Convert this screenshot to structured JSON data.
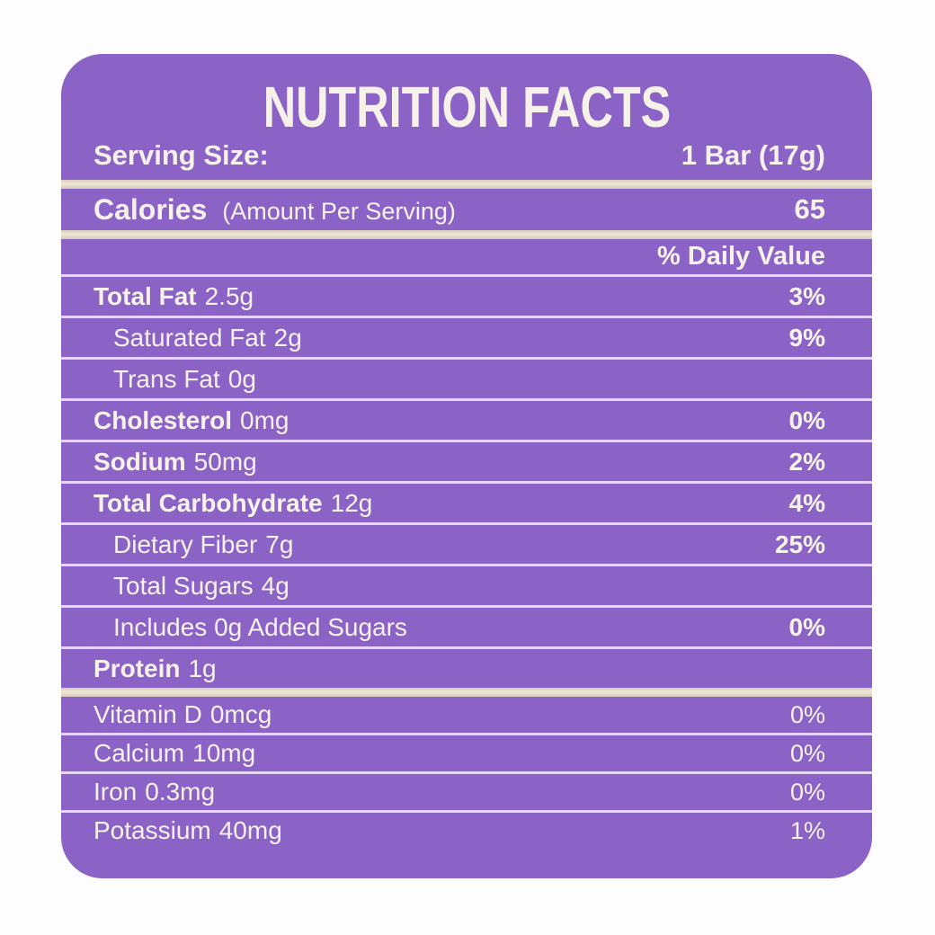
{
  "panel": {
    "title": "NUTRITION FACTS",
    "serving": {
      "label": "Serving Size:",
      "value": "1 Bar (17g)"
    },
    "calories": {
      "label": "Calories",
      "sublabel": "(Amount Per Serving)",
      "value": "65"
    },
    "daily_value_header": "% Daily Value",
    "rows": [
      {
        "label": "Total Fat",
        "amount": "2.5g",
        "dv": "3%"
      },
      {
        "label": "Saturated Fat",
        "amount": "2g",
        "dv": "9%"
      },
      {
        "label": "Trans Fat",
        "amount": "0g",
        "dv": ""
      },
      {
        "label": "Cholesterol",
        "amount": "0mg",
        "dv": "0%"
      },
      {
        "label": "Sodium",
        "amount": "50mg",
        "dv": "2%"
      },
      {
        "label": "Total Carbohydrate",
        "amount": "12g",
        "dv": "4%"
      },
      {
        "label": "Dietary Fiber",
        "amount": "7g",
        "dv": "25%"
      },
      {
        "label": "Total Sugars",
        "amount": "4g",
        "dv": ""
      },
      {
        "label": "Includes 0g Added Sugars",
        "amount": "",
        "dv": "0%"
      },
      {
        "label": "Protein",
        "amount": "1g",
        "dv": ""
      },
      {
        "label": "Vitamin D",
        "amount": "0mcg",
        "dv": "0%"
      },
      {
        "label": "Calcium",
        "amount": "10mg",
        "dv": "0%"
      },
      {
        "label": "Iron",
        "amount": "0.3mg",
        "dv": "0%"
      },
      {
        "label": "Potassium",
        "amount": "40mg",
        "dv": "1%"
      }
    ],
    "colors": {
      "panel_purple": "#8B63C7",
      "thick_divider_cream": "#DFD6C3",
      "thin_divider": "#F3EEF5",
      "text_cream": "#F7F2E9",
      "page_background": "#FDFDFD"
    }
  }
}
